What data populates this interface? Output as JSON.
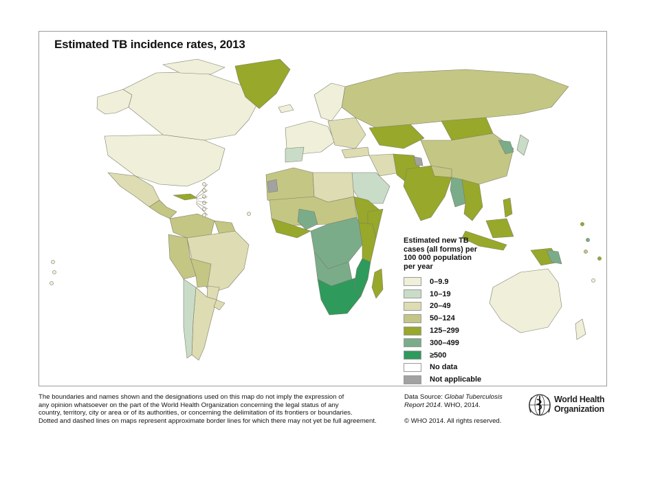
{
  "map": {
    "title": "Estimated TB incidence rates, 2013"
  },
  "legend": {
    "title_lines": [
      "Estimated new TB",
      "cases (all forms) per",
      "100 000 population",
      "per year"
    ],
    "items": [
      {
        "label": "0–9.9",
        "color": "#efefda"
      },
      {
        "label": "10–19",
        "color": "#c9dcc8"
      },
      {
        "label": "20–49",
        "color": "#dedcb2"
      },
      {
        "label": "50–124",
        "color": "#c4c684"
      },
      {
        "label": "125–299",
        "color": "#98a82a"
      },
      {
        "label": "300–499",
        "color": "#7aac8a"
      },
      {
        "label": "≥500",
        "color": "#2e9a5c"
      },
      {
        "label": "No data",
        "color": "#ffffff"
      },
      {
        "label": "Not applicable",
        "color": "#a2a2a2"
      }
    ]
  },
  "disclaimer": [
    "The boundaries and names shown and the designations used on this map do not imply the expression of",
    "any opinion whatsoever on the part of the World Health Organization concerning the legal status of any",
    "country, territory, city or area or of its authorities, or concerning the delimitation of its frontiers or boundaries.",
    "Dotted and dashed lines on maps represent approximate border lines for which there may not yet be full agreement."
  ],
  "source": {
    "prefix": "Data Source:",
    "title_italic": "Global Tuberculosis",
    "report_italic": "Report 2014",
    "suffix": ". WHO, 2014."
  },
  "copyright": "© WHO 2014. All rights reserved.",
  "logo": {
    "line1": "World Health",
    "line2": "Organization"
  }
}
